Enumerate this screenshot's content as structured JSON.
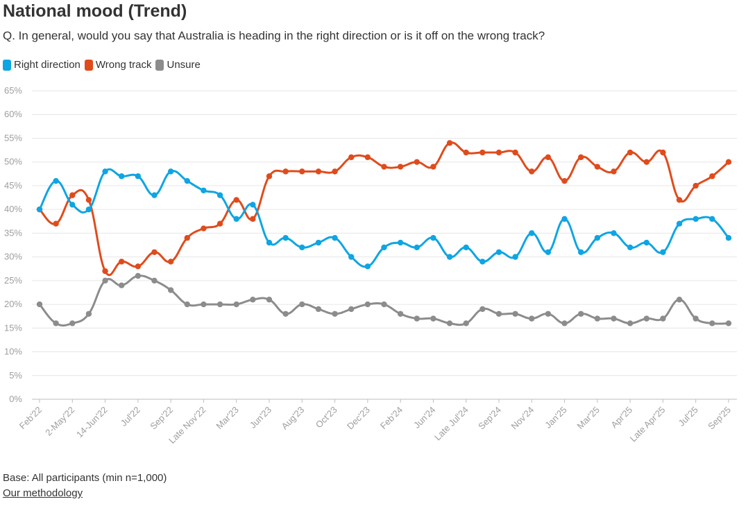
{
  "chart_data": {
    "type": "line",
    "title": "National mood (Trend)",
    "subtitle": "Q. In general, would you say that Australia is heading in the right direction or is it off on the wrong track?",
    "ylim": [
      0,
      65
    ],
    "ytick_labels": [
      "0%",
      "5%",
      "10%",
      "15%",
      "20%",
      "25%",
      "30%",
      "35%",
      "40%",
      "45%",
      "50%",
      "55%",
      "60%",
      "65%"
    ],
    "ytick_values": [
      0,
      5,
      10,
      15,
      20,
      25,
      30,
      35,
      40,
      45,
      50,
      55,
      60,
      65
    ],
    "xtick_labels": [
      "Feb'22",
      "2-May'22",
      "14-Jun'22",
      "Jul'22",
      "Sep'22",
      "Late Nov'22",
      "Mar'23",
      "Jun'23",
      "Aug'23",
      "Oct'23",
      "Dec'23",
      "Feb'24",
      "Jun'24",
      "Late Jul'24",
      "Sep'24",
      "Nov'24",
      "Jan'25",
      "Mar'25",
      "Apr'25",
      "Late Apr'25",
      "Jul'25",
      "Sep'25"
    ],
    "xtick_indices": [
      0,
      2,
      4,
      6,
      8,
      10,
      12,
      14,
      16,
      18,
      20,
      22,
      24,
      26,
      28,
      30,
      32,
      34,
      36,
      38,
      40,
      42
    ],
    "n_points": 43,
    "grid": true,
    "legend_position": "top-left",
    "series": [
      {
        "name": "Right direction",
        "color": "#0ea5e3",
        "values": [
          40,
          46,
          41,
          40,
          48,
          47,
          47,
          43,
          48,
          46,
          44,
          43,
          38,
          41,
          33,
          34,
          32,
          33,
          34,
          30,
          28,
          32,
          33,
          32,
          34,
          30,
          32,
          29,
          31,
          30,
          35,
          31,
          38,
          31,
          34,
          35,
          32,
          33,
          31,
          37,
          38,
          38,
          34
        ]
      },
      {
        "name": "Wrong track",
        "color": "#e04b1c",
        "values": [
          40,
          37,
          43,
          42,
          27,
          29,
          28,
          31,
          29,
          34,
          36,
          37,
          42,
          38,
          47,
          48,
          48,
          48,
          48,
          51,
          51,
          49,
          49,
          50,
          49,
          54,
          52,
          52,
          52,
          52,
          48,
          51,
          46,
          51,
          49,
          48,
          52,
          50,
          52,
          42,
          45,
          47,
          50
        ]
      },
      {
        "name": "Unsure",
        "color": "#8c8c8c",
        "values": [
          20,
          16,
          16,
          18,
          25,
          24,
          26,
          25,
          23,
          20,
          20,
          20,
          20,
          21,
          21,
          18,
          20,
          19,
          18,
          19,
          20,
          20,
          18,
          17,
          17,
          16,
          16,
          19,
          18,
          18,
          17,
          18,
          16,
          18,
          17,
          17,
          16,
          17,
          17,
          21,
          17,
          16,
          16
        ]
      }
    ]
  },
  "footer": {
    "base": "Base: All participants (min n=1,000)",
    "link": "Our methodology"
  }
}
